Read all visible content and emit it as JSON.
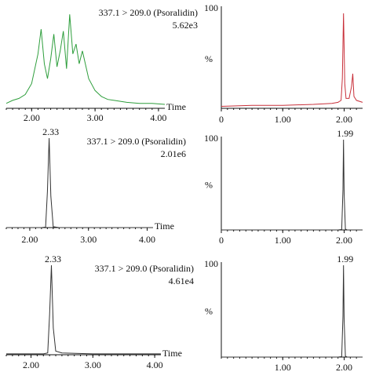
{
  "chart_data": [
    {
      "id": "p1",
      "type": "line",
      "color": "#2e9e3c",
      "xlim": [
        1.6,
        4.1
      ],
      "ylim": [
        0,
        100
      ],
      "xticks": [
        "2.00",
        "3.00",
        "4.00"
      ],
      "xtick_values": [
        2.0,
        3.0,
        4.0
      ],
      "xlabel": "Time",
      "ylabel": "",
      "y_top_label": "",
      "transition": "337.1 > 209.0 (Psoralidin)",
      "intensity": "5.62e3",
      "peak_label": "",
      "x": [
        1.6,
        1.7,
        1.8,
        1.9,
        2.0,
        2.1,
        2.15,
        2.2,
        2.25,
        2.3,
        2.35,
        2.4,
        2.45,
        2.5,
        2.55,
        2.6,
        2.65,
        2.7,
        2.75,
        2.8,
        2.9,
        3.0,
        3.1,
        3.2,
        3.3,
        3.5,
        3.7,
        3.9,
        4.1
      ],
      "values": [
        5,
        8,
        10,
        14,
        25,
        55,
        80,
        45,
        30,
        50,
        75,
        42,
        58,
        78,
        40,
        95,
        55,
        65,
        45,
        58,
        30,
        18,
        12,
        9,
        8,
        6,
        5,
        5,
        4
      ]
    },
    {
      "id": "p2",
      "type": "line",
      "color": "#c8303a",
      "xlim": [
        0,
        2.3
      ],
      "ylim": [
        0,
        100
      ],
      "xticks": [
        "0",
        "1.00",
        "2.00"
      ],
      "xtick_values": [
        0,
        1.0,
        2.0
      ],
      "xlabel": "",
      "ylabel": "%",
      "y_top_label": "100",
      "transition": "",
      "intensity": "",
      "peak_label": "",
      "x": [
        0,
        0.5,
        1.0,
        1.5,
        1.8,
        1.9,
        1.95,
        1.97,
        1.99,
        2.01,
        2.03,
        2.08,
        2.12,
        2.14,
        2.16,
        2.2,
        2.3
      ],
      "values": [
        2,
        3,
        3,
        4,
        5,
        6,
        8,
        30,
        96,
        25,
        10,
        10,
        22,
        35,
        12,
        8,
        6
      ]
    },
    {
      "id": "p3",
      "type": "line",
      "color": "#333333",
      "xlim": [
        1.6,
        4.1
      ],
      "ylim": [
        0,
        100
      ],
      "xticks": [
        "2.00",
        "3.00",
        "4.00"
      ],
      "xtick_values": [
        2.0,
        3.0,
        4.0
      ],
      "xlabel": "Time",
      "ylabel": "",
      "y_top_label": "",
      "transition": "337.1 > 209.0 (Psoralidin)",
      "intensity": "2.01e6",
      "peak_label": "2.33",
      "x": [
        1.6,
        2.2,
        2.27,
        2.3,
        2.33,
        2.36,
        2.4,
        2.5,
        4.1
      ],
      "values": [
        0,
        0,
        0.5,
        40,
        100,
        35,
        1,
        0,
        0
      ]
    },
    {
      "id": "p4",
      "type": "line",
      "color": "#333333",
      "xlim": [
        0,
        2.3
      ],
      "ylim": [
        0,
        100
      ],
      "xticks": [
        "0",
        "1.00",
        "2.00"
      ],
      "xtick_values": [
        0,
        1.0,
        2.0
      ],
      "xlabel": "",
      "ylabel": "%",
      "y_top_label": "100",
      "transition": "",
      "intensity": "",
      "peak_label": "1.99",
      "x": [
        0,
        1.9,
        1.96,
        1.98,
        1.99,
        2.0,
        2.02,
        2.05,
        2.3
      ],
      "values": [
        0,
        0,
        0.5,
        45,
        100,
        40,
        1,
        0,
        0
      ]
    },
    {
      "id": "p5",
      "type": "line",
      "color": "#333333",
      "xlim": [
        1.6,
        4.1
      ],
      "ylim": [
        0,
        100
      ],
      "xticks": [
        "2.00",
        "3.00",
        "4.00"
      ],
      "xtick_values": [
        2.0,
        3.0,
        4.0
      ],
      "xlabel": "Time",
      "ylabel": "",
      "y_top_label": "",
      "transition": "337.1 > 209.0 (Psoralidin)",
      "intensity": "4.61e4",
      "peak_label": "2.33",
      "x": [
        1.6,
        2.0,
        2.2,
        2.27,
        2.3,
        2.33,
        2.36,
        2.4,
        2.5,
        3.0,
        4.1
      ],
      "values": [
        1,
        1,
        1,
        2,
        45,
        100,
        30,
        4,
        2,
        1,
        1
      ]
    },
    {
      "id": "p6",
      "type": "line",
      "color": "#333333",
      "xlim": [
        0,
        2.3
      ],
      "ylim": [
        0,
        100
      ],
      "xticks": [
        "1.00",
        "2.00"
      ],
      "xtick_values": [
        1.0,
        2.0
      ],
      "xlabel": "",
      "ylabel": "%",
      "y_top_label": "100",
      "transition": "",
      "intensity": "",
      "peak_label": "1.99",
      "x": [
        0,
        1.9,
        1.96,
        1.98,
        1.99,
        2.0,
        2.02,
        2.05,
        2.3
      ],
      "values": [
        0,
        0,
        0.5,
        45,
        100,
        40,
        1,
        0,
        0
      ]
    }
  ]
}
